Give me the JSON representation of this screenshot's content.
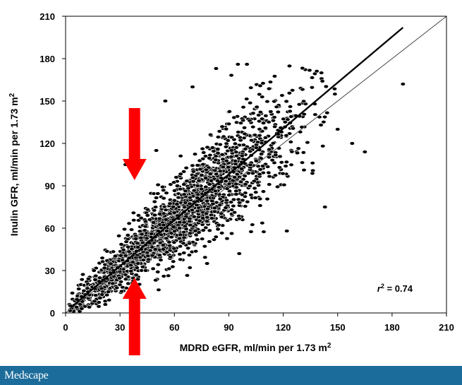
{
  "chart_data": {
    "type": "scatter",
    "title": "",
    "xlabel": "MDRD eGFR, ml/min per 1.73 m",
    "xlabel_superscript": "2",
    "ylabel": "Inulin GFR, ml/min per 1.73 m",
    "ylabel_superscript": "2",
    "xlim": [
      0,
      210
    ],
    "ylim": [
      0,
      210
    ],
    "xticks": [
      "0",
      "30",
      "60",
      "90",
      "120",
      "150",
      "180",
      "210"
    ],
    "yticks": [
      "0",
      "30",
      "60",
      "90",
      "120",
      "150",
      "180",
      "210"
    ],
    "grid": false,
    "legend": "none",
    "annotation": {
      "text": "r",
      "superscript": "2",
      "value_text": " = 0.74",
      "placement": "bottom-right"
    },
    "lines": [
      {
        "kind": "identity",
        "x": [
          0,
          210
        ],
        "y": [
          0,
          210
        ]
      },
      {
        "kind": "regression",
        "x": [
          3,
          186
        ],
        "y": [
          4,
          202
        ]
      }
    ],
    "arrows": [
      {
        "direction": "down",
        "x": 38,
        "y_from": 145,
        "y_to": 94,
        "color": "#ff0000"
      },
      {
        "direction": "up",
        "x": 38,
        "y_from": -30,
        "y_to": 25,
        "color": "#ff0000"
      }
    ],
    "points_description_count": 2000,
    "outliers": [
      {
        "x": 186,
        "y": 162
      },
      {
        "x": 165,
        "y": 114
      },
      {
        "x": 158,
        "y": 120
      },
      {
        "x": 150,
        "y": 130
      },
      {
        "x": 143,
        "y": 75
      },
      {
        "x": 122,
        "y": 58
      },
      {
        "x": 100,
        "y": 176
      },
      {
        "x": 95,
        "y": 176
      },
      {
        "x": 83,
        "y": 173
      },
      {
        "x": 70,
        "y": 160
      },
      {
        "x": 78,
        "y": 35
      },
      {
        "x": 33,
        "y": 105
      },
      {
        "x": 50,
        "y": 115
      },
      {
        "x": 55,
        "y": 150
      }
    ],
    "colors": {
      "points": "#000000",
      "point_outline": "#ffffff",
      "arrow": "#ff0000",
      "regression": "#000000",
      "identity": "#444444"
    }
  },
  "footer": {
    "brand": "Medscape",
    "background": "#1b6c9a"
  }
}
